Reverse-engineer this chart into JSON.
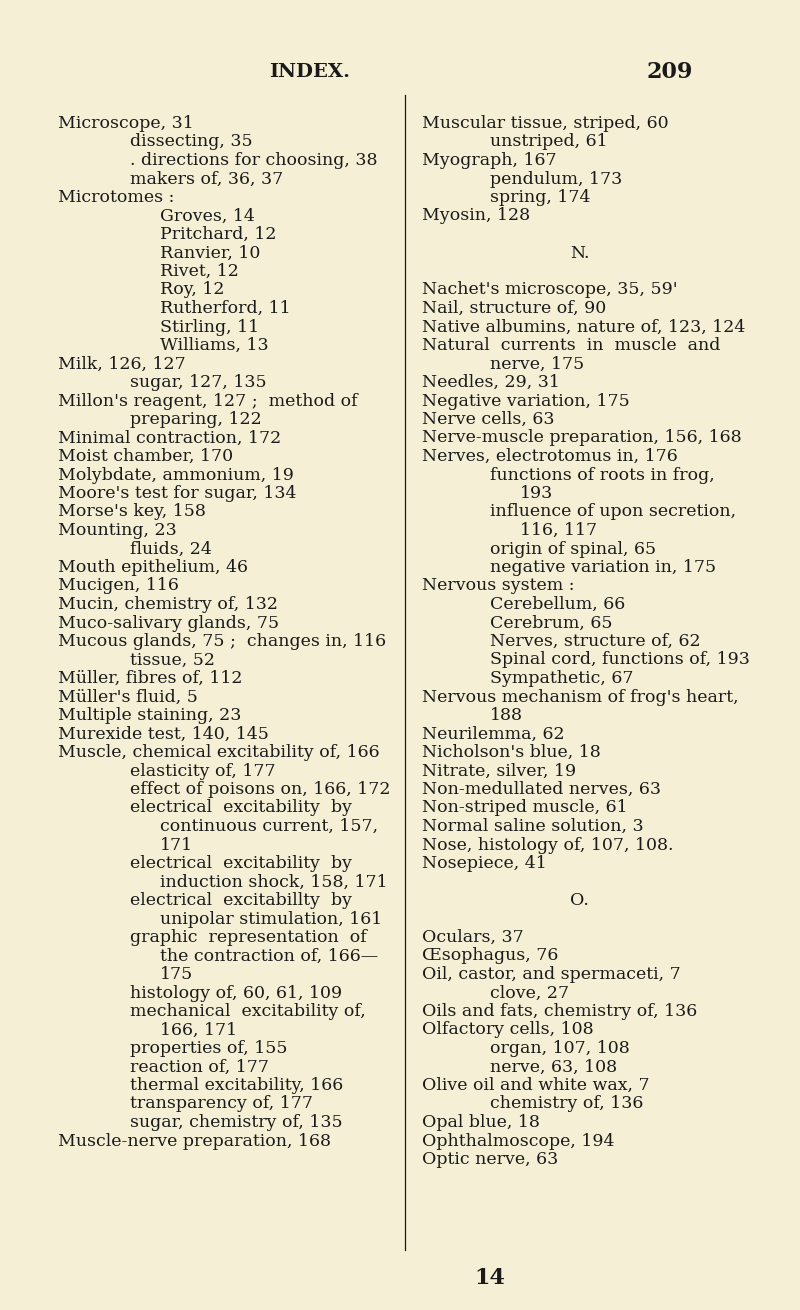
{
  "bg_color": "#f5f0d5",
  "text_color": "#1a1a1a",
  "title": "INDEX.",
  "page_num_top": "209",
  "page_num_bottom": "14",
  "title_fontsize": 14,
  "body_fontsize": 12.5,
  "left_col": [
    [
      "Microscope, 31",
      0
    ],
    [
      "dissecting, 35",
      1
    ],
    [
      ". directions for choosing, 38",
      1
    ],
    [
      "makers of, 36, 37",
      1
    ],
    [
      "Microtomes :",
      0
    ],
    [
      "Groves, 14",
      2
    ],
    [
      "Pritchard, 12",
      2
    ],
    [
      "Ranvier, 10",
      2
    ],
    [
      "Rivet, 12",
      2
    ],
    [
      "Roy, 12",
      2
    ],
    [
      "Rutherford, 11",
      2
    ],
    [
      "Stirling, 11",
      2
    ],
    [
      "Williams, 13",
      2
    ],
    [
      "Milk, 126, 127",
      0
    ],
    [
      "sugar, 127, 135",
      1
    ],
    [
      "Millon's reagent, 127 ;  method of",
      0
    ],
    [
      "preparing, 122",
      1
    ],
    [
      "Minimal contraction, 172",
      0
    ],
    [
      "Moist chamber, 170",
      0
    ],
    [
      "Molybdate, ammonium, 19",
      0
    ],
    [
      "Moore's test for sugar, 134",
      0
    ],
    [
      "Morse's key, 158",
      0
    ],
    [
      "Mounting, 23",
      0
    ],
    [
      "fluids, 24",
      1
    ],
    [
      "Mouth epithelium, 46",
      0
    ],
    [
      "Mucigen, 116",
      0
    ],
    [
      "Mucin, chemistry of, 132",
      0
    ],
    [
      "Muco-salivary glands, 75",
      0
    ],
    [
      "Mucous glands, 75 ;  changes in, 116",
      0
    ],
    [
      "tissue, 52",
      1
    ],
    [
      "Müller, fibres of, 112",
      0
    ],
    [
      "Müller's fluid, 5",
      0
    ],
    [
      "Multiple staining, 23",
      0
    ],
    [
      "Murexide test, 140, 145",
      0
    ],
    [
      "Muscle, chemical excitability of, 166",
      0
    ],
    [
      "elasticity of, 177",
      1
    ],
    [
      "effect of poisons on, 166, 172",
      1
    ],
    [
      "electrical  excitability  by",
      1
    ],
    [
      "continuous current, 157,",
      2
    ],
    [
      "171",
      2
    ],
    [
      "electrical  excitability  by",
      1
    ],
    [
      "induction shock, 158, 171",
      2
    ],
    [
      "electrical  excitabillty  by",
      1
    ],
    [
      "unipolar stimulation, 161",
      2
    ],
    [
      "graphic  representation  of",
      1
    ],
    [
      "the contraction of, 166—",
      2
    ],
    [
      "175",
      2
    ],
    [
      "histology of, 60, 61, 109",
      1
    ],
    [
      "mechanical  excitability of,",
      1
    ],
    [
      "166, 171",
      2
    ],
    [
      "properties of, 155",
      1
    ],
    [
      "reaction of, 177",
      1
    ],
    [
      "thermal excitability, 166",
      1
    ],
    [
      "transparency of, 177",
      1
    ],
    [
      "sugar, chemistry of, 135",
      1
    ],
    [
      "Muscle-nerve preparation, 168",
      0
    ]
  ],
  "right_col": [
    [
      "Muscular tissue, striped, 60",
      0
    ],
    [
      "unstriped, 61",
      1
    ],
    [
      "Myograph, 167",
      0
    ],
    [
      "pendulum, 173",
      1
    ],
    [
      "spring, 174",
      1
    ],
    [
      "Myosin, 128",
      0
    ],
    [
      "",
      0
    ],
    [
      "N.",
      3
    ],
    [
      "",
      0
    ],
    [
      "Nachet's microscope, 35, 59'",
      0
    ],
    [
      "Nail, structure of, 90",
      0
    ],
    [
      "Native albumins, nature of, 123, 124",
      0
    ],
    [
      "Natural  currents  in  muscle  and",
      0
    ],
    [
      "nerve, 175",
      1
    ],
    [
      "Needles, 29, 31",
      0
    ],
    [
      "Negative variation, 175",
      0
    ],
    [
      "Nerve cells, 63",
      0
    ],
    [
      "Nerve-muscle preparation, 156, 168",
      0
    ],
    [
      "Nerves, electrotomus in, 176",
      0
    ],
    [
      "functions of roots in frog,",
      1
    ],
    [
      "193",
      2
    ],
    [
      "influence of upon secretion,",
      1
    ],
    [
      "116, 117",
      2
    ],
    [
      "origin of spinal, 65",
      1
    ],
    [
      "negative variation in, 175",
      1
    ],
    [
      "Nervous system :",
      0
    ],
    [
      "Cerebellum, 66",
      1
    ],
    [
      "Cerebrum, 65",
      1
    ],
    [
      "Nerves, structure of, 62",
      1
    ],
    [
      "Spinal cord, functions of, 193",
      1
    ],
    [
      "Sympathetic, 67",
      1
    ],
    [
      "Nervous mechanism of frog's heart,",
      0
    ],
    [
      "188",
      1
    ],
    [
      "Neurilemma, 62",
      0
    ],
    [
      "Nicholson's blue, 18",
      0
    ],
    [
      "Nitrate, silver, 19",
      0
    ],
    [
      "Non-medullated nerves, 63",
      0
    ],
    [
      "Non-striped muscle, 61",
      0
    ],
    [
      "Normal saline solution, 3",
      0
    ],
    [
      "Nose, histology of, 107, 108.",
      0
    ],
    [
      "Nosepiece, 41",
      0
    ],
    [
      "",
      0
    ],
    [
      "O.",
      3
    ],
    [
      "",
      0
    ],
    [
      "Oculars, 37",
      0
    ],
    [
      "Œsophagus, 76",
      0
    ],
    [
      "Oil, castor, and spermaceti, 7",
      0
    ],
    [
      "clove, 27",
      1
    ],
    [
      "Oils and fats, chemistry of, 136",
      0
    ],
    [
      "Olfactory cells, 108",
      0
    ],
    [
      "organ, 107, 108",
      1
    ],
    [
      "nerve, 63, 108",
      1
    ],
    [
      "Olive oil and white wax, 7",
      0
    ],
    [
      "chemistry of, 136",
      1
    ],
    [
      "Opal blue, 18",
      0
    ],
    [
      "Ophthalmoscope, 194",
      0
    ],
    [
      "Optic nerve, 63",
      0
    ]
  ]
}
